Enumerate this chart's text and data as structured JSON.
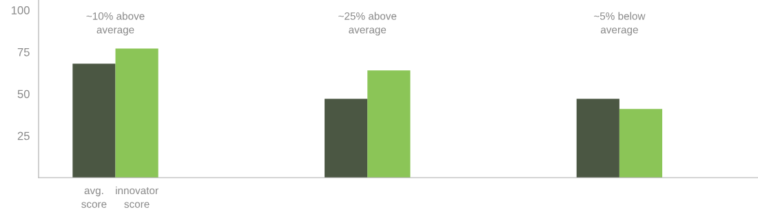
{
  "chart_data": {
    "type": "bar",
    "categories": [
      null,
      null,
      null
    ],
    "series": [
      {
        "name": "avg.\nscore",
        "color": "#4b5743",
        "values": [
          68,
          47,
          47
        ]
      },
      {
        "name": "innovator\nscore",
        "color": "#8bc557",
        "values": [
          77,
          64,
          41
        ]
      }
    ],
    "ylim": [
      0,
      106
    ],
    "yticks": [
      25,
      50,
      75,
      100
    ],
    "annotations": [
      "~10% above\naverage",
      "~25% above\naverage",
      "~5% below\naverage"
    ],
    "grid": false
  }
}
